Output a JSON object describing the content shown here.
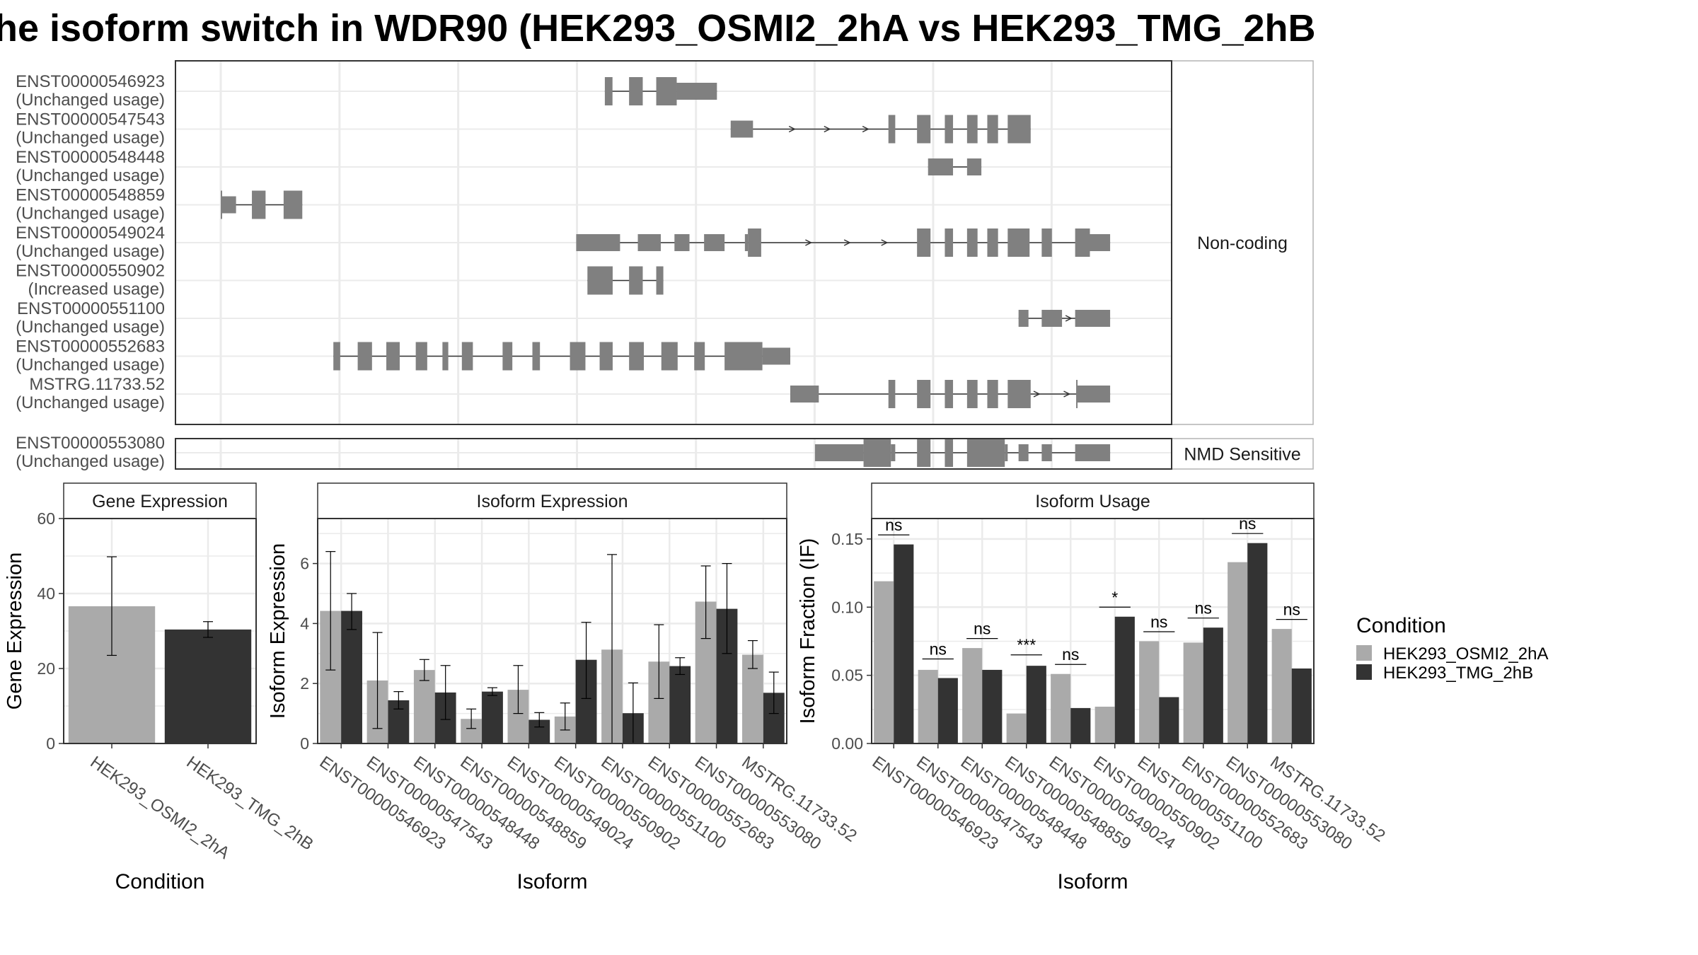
{
  "title": "he isoform switch in WDR90 (HEK293_OSMI2_2hA vs HEK293_TMG_2hB",
  "colors": {
    "exon": "#808080",
    "condA": "#aaaaaa",
    "condB": "#333333",
    "panel_border": "#333333",
    "strip_fill": "#ffffff",
    "grid": "#ebebeb"
  },
  "structure": {
    "groups": [
      {
        "label": "Non-coding",
        "transcripts": [
          {
            "id": "ENST00000546923",
            "usage": "(Unchanged usage)",
            "exons": [
              [
                0.4215,
                0.4299,
                "thick"
              ],
              [
                0.4481,
                0.4631,
                "thick"
              ],
              [
                0.4779,
                0.5004,
                "thick"
              ],
              [
                0.5004,
                0.5445,
                "thin"
              ]
            ],
            "span": [
              0.4215,
              0.5445
            ],
            "arrows": []
          },
          {
            "id": "ENST00000547543",
            "usage": "(Unchanged usage)",
            "exons": [
              [
                0.5596,
                0.5841,
                "thin"
              ],
              [
                0.7327,
                0.7402,
                "thick"
              ],
              [
                0.7641,
                0.7789,
                "thick"
              ],
              [
                0.7946,
                0.8036,
                "thick"
              ],
              [
                0.819,
                0.8305,
                "thick"
              ],
              [
                0.8412,
                0.853,
                "thick"
              ],
              [
                0.8636,
                0.8888,
                "thick"
              ]
            ],
            "span": [
              0.5596,
              0.8888
            ],
            "arrows": [
              0.6275,
              0.666,
              0.7082
            ]
          },
          {
            "id": "ENST00000548448",
            "usage": "(Unchanged usage)",
            "exons": [
              [
                0.7762,
                0.8036,
                "thin"
              ],
              [
                0.819,
                0.8347,
                "thin"
              ]
            ],
            "span": [
              0.7762,
              0.8347
            ],
            "arrows": []
          },
          {
            "id": "ENST00000548859",
            "usage": "(Unchanged usage)",
            "exons": [
              [
                0.0,
                0.0012,
                "thick"
              ],
              [
                0.0012,
                0.0168,
                "thin"
              ],
              [
                0.0342,
                0.0492,
                "thick"
              ],
              [
                0.069,
                0.0895,
                "thick"
              ]
            ],
            "span": [
              0.0,
              0.0895
            ],
            "arrows": []
          },
          {
            "id": "ENST00000549024",
            "usage": "(Unchanged usage)",
            "exons": [
              [
                0.3901,
                0.4382,
                "thin"
              ],
              [
                0.4577,
                0.4829,
                "thin"
              ],
              [
                0.4979,
                0.5144,
                "thin"
              ],
              [
                0.5304,
                0.5529,
                "thin"
              ],
              [
                0.5752,
                0.5785,
                "thin"
              ],
              [
                0.5785,
                0.5931,
                "thick"
              ],
              [
                0.7641,
                0.7789,
                "thick"
              ],
              [
                0.7946,
                0.8036,
                "thick"
              ],
              [
                0.819,
                0.8305,
                "thick"
              ],
              [
                0.8412,
                0.853,
                "thick"
              ],
              [
                0.8636,
                0.8876,
                "thick"
              ],
              [
                0.9009,
                0.9121,
                "thick"
              ],
              [
                0.9376,
                0.9538,
                "thick"
              ],
              [
                0.9538,
                0.976,
                "thin"
              ]
            ],
            "span": [
              0.3901,
              0.976
            ],
            "arrows": [
              0.6455,
              0.688,
              0.7288
            ]
          },
          {
            "id": "ENST00000550902",
            "usage": "(Increased usage)",
            "exons": [
              [
                0.4024,
                0.4301,
                "thick"
              ],
              [
                0.4481,
                0.4631,
                "thick"
              ],
              [
                0.4779,
                0.4857,
                "thick"
              ]
            ],
            "span": [
              0.4024,
              0.4857
            ],
            "arrows": []
          },
          {
            "id": "ENST00000551100",
            "usage": "(Unchanged usage)",
            "exons": [
              [
                0.8755,
                0.8864,
                "thin"
              ],
              [
                0.9009,
                0.9232,
                "thin"
              ],
              [
                0.9376,
                0.976,
                "thin"
              ]
            ],
            "span": [
              0.8755,
              0.976
            ],
            "arrows": [
              0.931
            ]
          },
          {
            "id": "ENST00000552683",
            "usage": "(Unchanged usage)",
            "exons": [
              [
                0.1236,
                0.1311,
                "thick"
              ],
              [
                0.1503,
                0.166,
                "thick"
              ],
              [
                0.1817,
                0.1964,
                "thick"
              ],
              [
                0.214,
                0.2266,
                "thick"
              ],
              [
                0.2433,
                0.2497,
                "thick"
              ],
              [
                0.2646,
                0.2767,
                "thick"
              ],
              [
                0.3093,
                0.32,
                "thick"
              ],
              [
                0.342,
                0.3503,
                "thick"
              ],
              [
                0.3832,
                0.4002,
                "thick"
              ],
              [
                0.4158,
                0.4301,
                "thick"
              ],
              [
                0.4481,
                0.4643,
                "thick"
              ],
              [
                0.4835,
                0.5014,
                "thick"
              ],
              [
                0.5196,
                0.5312,
                "thick"
              ],
              [
                0.5529,
                0.5944,
                "thick"
              ],
              [
                0.5944,
                0.625,
                "thin"
              ]
            ],
            "span": [
              0.1236,
              0.625
            ],
            "arrows": []
          },
          {
            "id": "MSTRG.11733.52",
            "usage": "(Unchanged usage)",
            "exons": [
              [
                0.625,
                0.6563,
                "thin"
              ],
              [
                0.7327,
                0.7402,
                "thick"
              ],
              [
                0.7641,
                0.7789,
                "thick"
              ],
              [
                0.7946,
                0.8036,
                "thick"
              ],
              [
                0.819,
                0.8305,
                "thick"
              ],
              [
                0.8412,
                0.853,
                "thick"
              ],
              [
                0.8636,
                0.8888,
                "thick"
              ],
              [
                0.9387,
                0.94,
                "thick"
              ],
              [
                0.94,
                0.976,
                "thin"
              ]
            ],
            "span": [
              0.625,
              0.976
            ],
            "arrows": [
              0.896,
              0.929
            ]
          }
        ]
      },
      {
        "label": "NMD Sensitive",
        "transcripts": [
          {
            "id": "ENST00000553080",
            "usage": "(Unchanged usage)",
            "exons": [
              [
                0.6521,
                0.7054,
                "thin"
              ],
              [
                0.7054,
                0.7354,
                "thick"
              ],
              [
                0.7354,
                0.7402,
                "thin"
              ],
              [
                0.7641,
                0.7789,
                "thick"
              ],
              [
                0.7946,
                0.8036,
                "thick"
              ],
              [
                0.819,
                0.8604,
                "thick"
              ],
              [
                0.8604,
                0.8636,
                "thin"
              ],
              [
                0.8755,
                0.8864,
                "thin"
              ],
              [
                0.9009,
                0.9121,
                "thin"
              ],
              [
                0.9376,
                0.976,
                "thin"
              ]
            ],
            "span": [
              0.6521,
              0.976
            ],
            "arrows": []
          }
        ]
      }
    ]
  },
  "chart_data": [
    {
      "type": "bar",
      "title": "Gene Expression",
      "xlabel": "Condition",
      "ylabel": "Gene Expression",
      "ylim": [
        0,
        60
      ],
      "yticks": [
        0,
        20,
        40,
        60
      ],
      "categories": [
        "HEK293_OSMI2_2hA",
        "HEK293_TMG_2hB"
      ],
      "values": [
        36.6,
        30.4
      ],
      "err_low": [
        23.5,
        28.3
      ],
      "err_high": [
        49.8,
        32.5
      ],
      "grid": true
    },
    {
      "type": "bar",
      "title": "Isoform Expression",
      "xlabel": "Isoform",
      "ylabel": "Isoform Expression",
      "ylim": [
        0,
        7.5
      ],
      "yticks": [
        0,
        2,
        4,
        6
      ],
      "categories": [
        "ENST00000546923",
        "ENST00000547543",
        "ENST00000548448",
        "ENST00000548859",
        "ENST00000549024",
        "ENST00000550902",
        "ENST00000551100",
        "ENST00000552683",
        "ENST00000553080",
        "MSTRG.11733.52"
      ],
      "series": [
        {
          "name": "HEK293_OSMI2_2hA",
          "values": [
            4.42,
            2.1,
            2.45,
            0.82,
            1.79,
            0.9,
            3.13,
            2.73,
            4.73,
            2.96
          ],
          "err_low": [
            2.45,
            0.5,
            2.1,
            0.5,
            1.0,
            0.45,
            0.0,
            1.5,
            3.5,
            2.5
          ],
          "err_high": [
            6.4,
            3.7,
            2.8,
            1.15,
            2.6,
            1.35,
            6.3,
            3.96,
            5.92,
            3.43
          ]
        },
        {
          "name": "HEK293_TMG_2hB",
          "values": [
            4.42,
            1.44,
            1.7,
            1.73,
            0.79,
            2.79,
            1.01,
            2.58,
            4.49,
            1.69
          ],
          "err_low": [
            3.8,
            1.15,
            0.8,
            1.6,
            0.55,
            1.5,
            0.0,
            2.3,
            3.0,
            1.0
          ],
          "err_high": [
            5.0,
            1.73,
            2.6,
            1.86,
            1.03,
            4.04,
            2.02,
            2.86,
            6.0,
            2.38
          ]
        }
      ],
      "grid": true
    },
    {
      "type": "bar",
      "title": "Isoform Usage",
      "xlabel": "Isoform",
      "ylabel": "Isoform Fraction (IF)",
      "ylim": [
        0,
        0.165
      ],
      "yticks": [
        "0.00",
        "0.05",
        "0.10",
        "0.15"
      ],
      "categories": [
        "ENST00000546923",
        "ENST00000547543",
        "ENST00000548448",
        "ENST00000548859",
        "ENST00000549024",
        "ENST00000550902",
        "ENST00000551100",
        "ENST00000552683",
        "ENST00000553080",
        "MSTRG.11733.52"
      ],
      "series": [
        {
          "name": "HEK293_OSMI2_2hA",
          "values": [
            0.119,
            0.054,
            0.07,
            0.022,
            0.051,
            0.027,
            0.075,
            0.074,
            0.133,
            0.084
          ]
        },
        {
          "name": "HEK293_TMG_2hB",
          "values": [
            0.146,
            0.048,
            0.054,
            0.057,
            0.026,
            0.093,
            0.034,
            0.085,
            0.147,
            0.055
          ]
        }
      ],
      "significance": [
        "ns",
        "ns",
        "ns",
        "***",
        "ns",
        "*",
        "ns",
        "ns",
        "ns",
        "ns"
      ],
      "sig_y": [
        0.153,
        0.062,
        0.077,
        0.065,
        0.058,
        0.1,
        0.082,
        0.092,
        0.154,
        0.091
      ],
      "grid": true
    }
  ],
  "legend": {
    "title": "Condition",
    "position": "right",
    "entries": [
      "HEK293_OSMI2_2hA",
      "HEK293_TMG_2hB"
    ]
  }
}
